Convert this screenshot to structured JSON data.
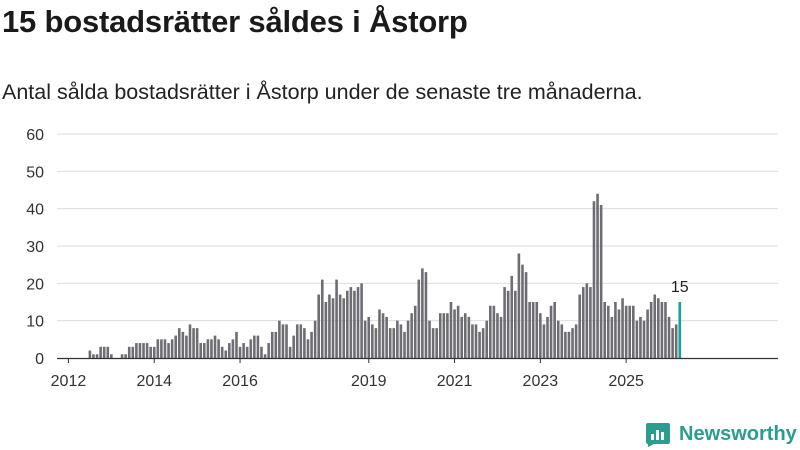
{
  "header": {
    "title": "15 bostadsrätter såldes i Åstorp",
    "subtitle": "Antal sålda bostadsrätter i Åstorp under de senaste tre månaderna."
  },
  "brand": {
    "name": "Newsworthy",
    "icon": "bar-chart-logo-icon"
  },
  "colors": {
    "bar": "#6e6d74",
    "highlight": "#16a09a",
    "grid": "#dddddd",
    "axis": "#333333",
    "brand": "#2a9d8f"
  },
  "chart_data": {
    "type": "bar",
    "title": "15 bostadsrätter såldes i Åstorp",
    "subtitle": "Antal sålda bostadsrätter i Åstorp under de senaste tre månaderna.",
    "xlabel": "",
    "ylabel": "",
    "ylim": [
      0,
      60
    ],
    "y_ticks": [
      0,
      10,
      20,
      30,
      40,
      50,
      60
    ],
    "x_ticks": [
      {
        "label": "2012",
        "index": 2
      },
      {
        "label": "2014",
        "index": 26
      },
      {
        "label": "2016",
        "index": 50
      },
      {
        "label": "2019",
        "index": 86
      },
      {
        "label": "2021",
        "index": 110
      },
      {
        "label": "2023",
        "index": 134
      },
      {
        "label": "2025",
        "index": 158
      }
    ],
    "grid": true,
    "period": "rolling three-month total, monthly",
    "values": [
      0,
      0,
      0,
      0,
      0,
      0,
      0,
      0,
      2,
      1,
      1,
      3,
      3,
      3,
      1,
      0,
      0,
      1,
      1,
      3,
      3,
      4,
      4,
      4,
      4,
      3,
      3,
      5,
      5,
      5,
      4,
      5,
      6,
      8,
      7,
      6,
      9,
      8,
      8,
      4,
      4,
      5,
      5,
      6,
      5,
      3,
      2,
      4,
      5,
      7,
      3,
      4,
      3,
      5,
      6,
      6,
      3,
      1,
      4,
      7,
      7,
      10,
      9,
      9,
      3,
      6,
      9,
      9,
      8,
      5,
      7,
      10,
      17,
      21,
      15,
      17,
      16,
      21,
      17,
      16,
      18,
      19,
      18,
      19,
      20,
      10,
      11,
      9,
      8,
      13,
      12,
      11,
      8,
      8,
      10,
      9,
      7,
      10,
      12,
      14,
      21,
      24,
      23,
      10,
      8,
      8,
      12,
      12,
      12,
      15,
      13,
      14,
      11,
      12,
      11,
      9,
      9,
      7,
      8,
      10,
      14,
      14,
      12,
      11,
      19,
      18,
      22,
      18,
      28,
      25,
      23,
      15,
      15,
      15,
      12,
      9,
      11,
      14,
      15,
      10,
      9,
      7,
      7,
      8,
      9,
      17,
      19,
      20,
      19,
      42,
      44,
      41,
      15,
      14,
      11,
      15,
      13,
      16,
      14,
      14,
      14,
      10,
      11,
      10,
      13,
      15,
      17,
      16,
      15,
      15,
      11,
      8,
      9,
      15
    ],
    "highlight_index": 173,
    "annotation": {
      "text": "15",
      "index": 173,
      "value": 15
    }
  }
}
